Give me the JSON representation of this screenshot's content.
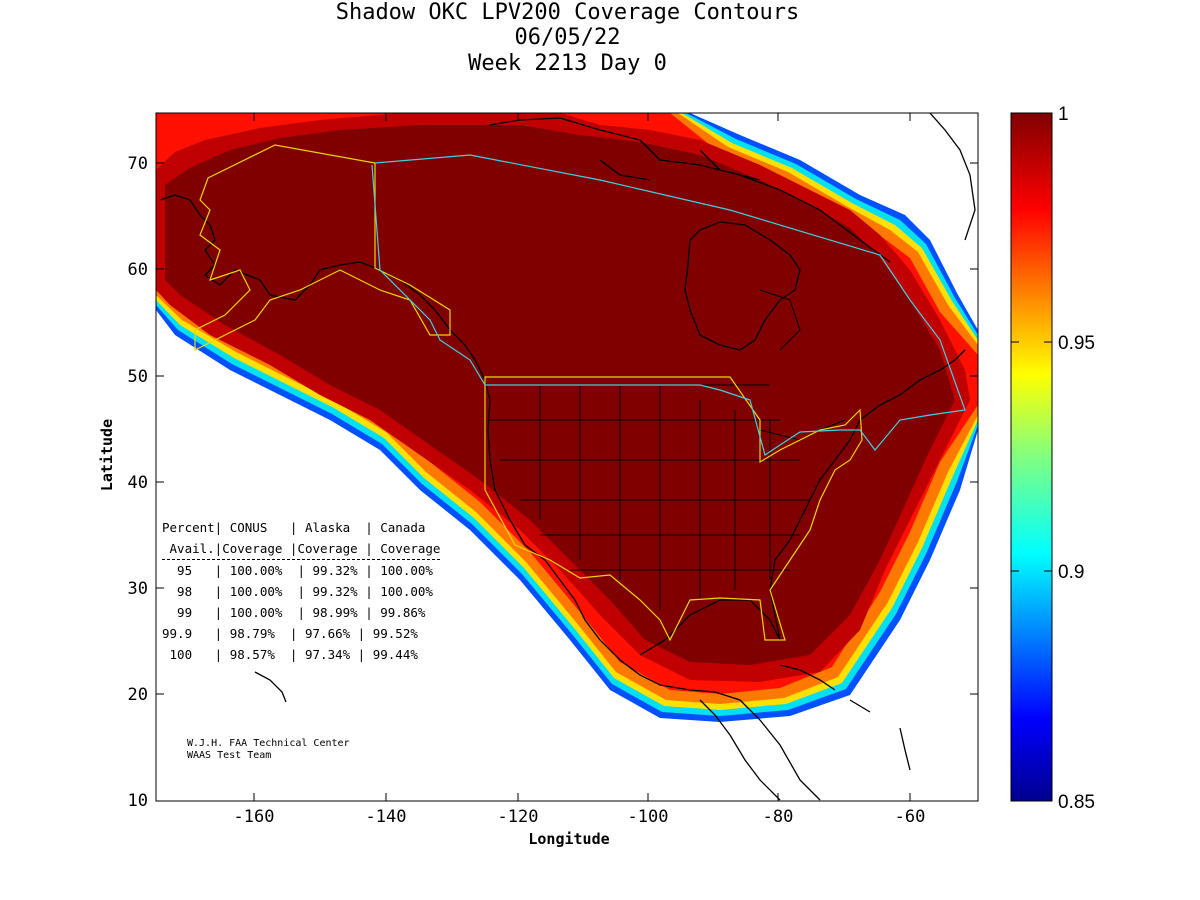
{
  "title": {
    "line1": "Shadow OKC LPV200 Coverage Contours",
    "line2": "06/05/22",
    "line3": "Week 2213 Day 0"
  },
  "axes": {
    "xlabel": "Longitude",
    "ylabel": "Latitude",
    "x_ticks": [
      "-160",
      "-140",
      "-120",
      "-100",
      "-80",
      "-60"
    ],
    "y_ticks": [
      "70",
      "60",
      "50",
      "40",
      "30",
      "20",
      "10"
    ],
    "xlim": [
      -175,
      -50
    ],
    "ylim": [
      10,
      75
    ]
  },
  "colorbar": {
    "labels": [
      "1",
      "0.95",
      "0.9",
      "0.85"
    ],
    "range": [
      0.85,
      1.0
    ],
    "colormap": "jet"
  },
  "table": {
    "header1": "Percent| CONUS   | Alaska  | Canada",
    "header2": " Avail.|Coverage |Coverage | Coverage",
    "rows": [
      "  95   | 100.00%  | 99.32% | 100.00%",
      "  98   | 100.00%  | 99.32% | 100.00%",
      "  99   | 100.00%  | 98.99% | 99.86%",
      "99.9   | 98.79%  | 97.66% | 99.52%",
      " 100   | 98.57%  | 97.34% | 99.44%"
    ]
  },
  "credit": {
    "line1": "W.J.H. FAA Technical Center",
    "line2": "WAAS Test Team"
  },
  "colors": {
    "coverage_core": "#800000",
    "service_boundary_conus_alaska": "#e8d800",
    "service_boundary_canada": "#40d0e0"
  }
}
